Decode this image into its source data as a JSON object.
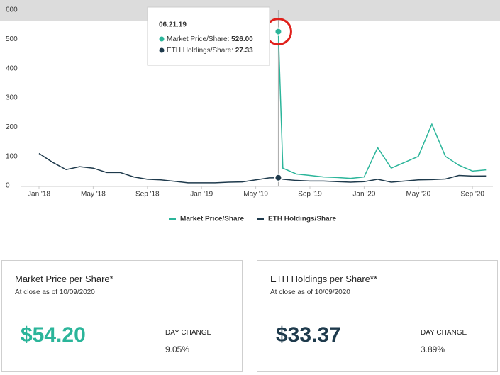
{
  "chart_data": {
    "type": "line",
    "x": [
      "2018-01",
      "2018-02",
      "2018-03",
      "2018-04",
      "2018-05",
      "2018-06",
      "2018-07",
      "2018-08",
      "2018-09",
      "2018-10",
      "2018-11",
      "2018-12",
      "2019-01",
      "2019-02",
      "2019-03",
      "2019-04",
      "2019-05",
      "2019-06",
      "2019-06-21",
      "2019-07",
      "2019-08",
      "2019-09",
      "2019-10",
      "2019-11",
      "2019-12",
      "2020-01",
      "2020-02",
      "2020-03",
      "2020-04",
      "2020-05",
      "2020-06",
      "2020-07",
      "2020-08",
      "2020-09",
      "2020-10"
    ],
    "series": [
      {
        "name": "Market Price/Share",
        "color": "#2bb59a",
        "values": [
          null,
          null,
          null,
          null,
          null,
          null,
          null,
          null,
          null,
          null,
          null,
          null,
          null,
          null,
          null,
          null,
          null,
          null,
          526,
          60,
          40,
          35,
          30,
          28,
          25,
          30,
          130,
          60,
          80,
          100,
          210,
          100,
          70,
          50,
          54.2
        ]
      },
      {
        "name": "ETH Holdings/Share",
        "color": "#1e3a4c",
        "values": [
          110,
          80,
          55,
          65,
          60,
          45,
          45,
          30,
          22,
          20,
          15,
          10,
          10,
          10,
          12,
          13,
          20,
          27,
          27.33,
          22,
          18,
          16,
          16,
          14,
          12,
          14,
          22,
          12,
          16,
          20,
          21,
          23,
          35,
          33,
          33.37
        ]
      }
    ],
    "ylim": [
      0,
      600
    ],
    "yticks": [
      0,
      100,
      200,
      300,
      400,
      500,
      600
    ],
    "xticks": [
      {
        "value": "2018-01",
        "label": "Jan '18"
      },
      {
        "value": "2018-05",
        "label": "May '18"
      },
      {
        "value": "2018-09",
        "label": "Sep '18"
      },
      {
        "value": "2019-01",
        "label": "Jan '19"
      },
      {
        "value": "2019-05",
        "label": "May '19"
      },
      {
        "value": "2019-09",
        "label": "Sep '19"
      },
      {
        "value": "2020-01",
        "label": "Jan '20"
      },
      {
        "value": "2020-05",
        "label": "May '20"
      },
      {
        "value": "2020-09",
        "label": "Sep '20"
      }
    ],
    "grid": false,
    "legend": "bottom",
    "tooltip": {
      "date": "06.21.19",
      "index": 18,
      "rows": [
        {
          "label": "Market Price/Share:",
          "value": "526.00"
        },
        {
          "label": "ETH Holdings/Share:",
          "value": "27.33"
        }
      ]
    }
  },
  "cards": [
    {
      "title": "Market Price per Share*",
      "subtitle": "At close as of 10/09/2020",
      "value": "$54.20",
      "change_label": "DAY CHANGE",
      "change": "9.05%"
    },
    {
      "title": "ETH Holdings per Share**",
      "subtitle": "At close as of 10/09/2020",
      "value": "$33.37",
      "change_label": "DAY CHANGE",
      "change": "3.89%"
    }
  ]
}
